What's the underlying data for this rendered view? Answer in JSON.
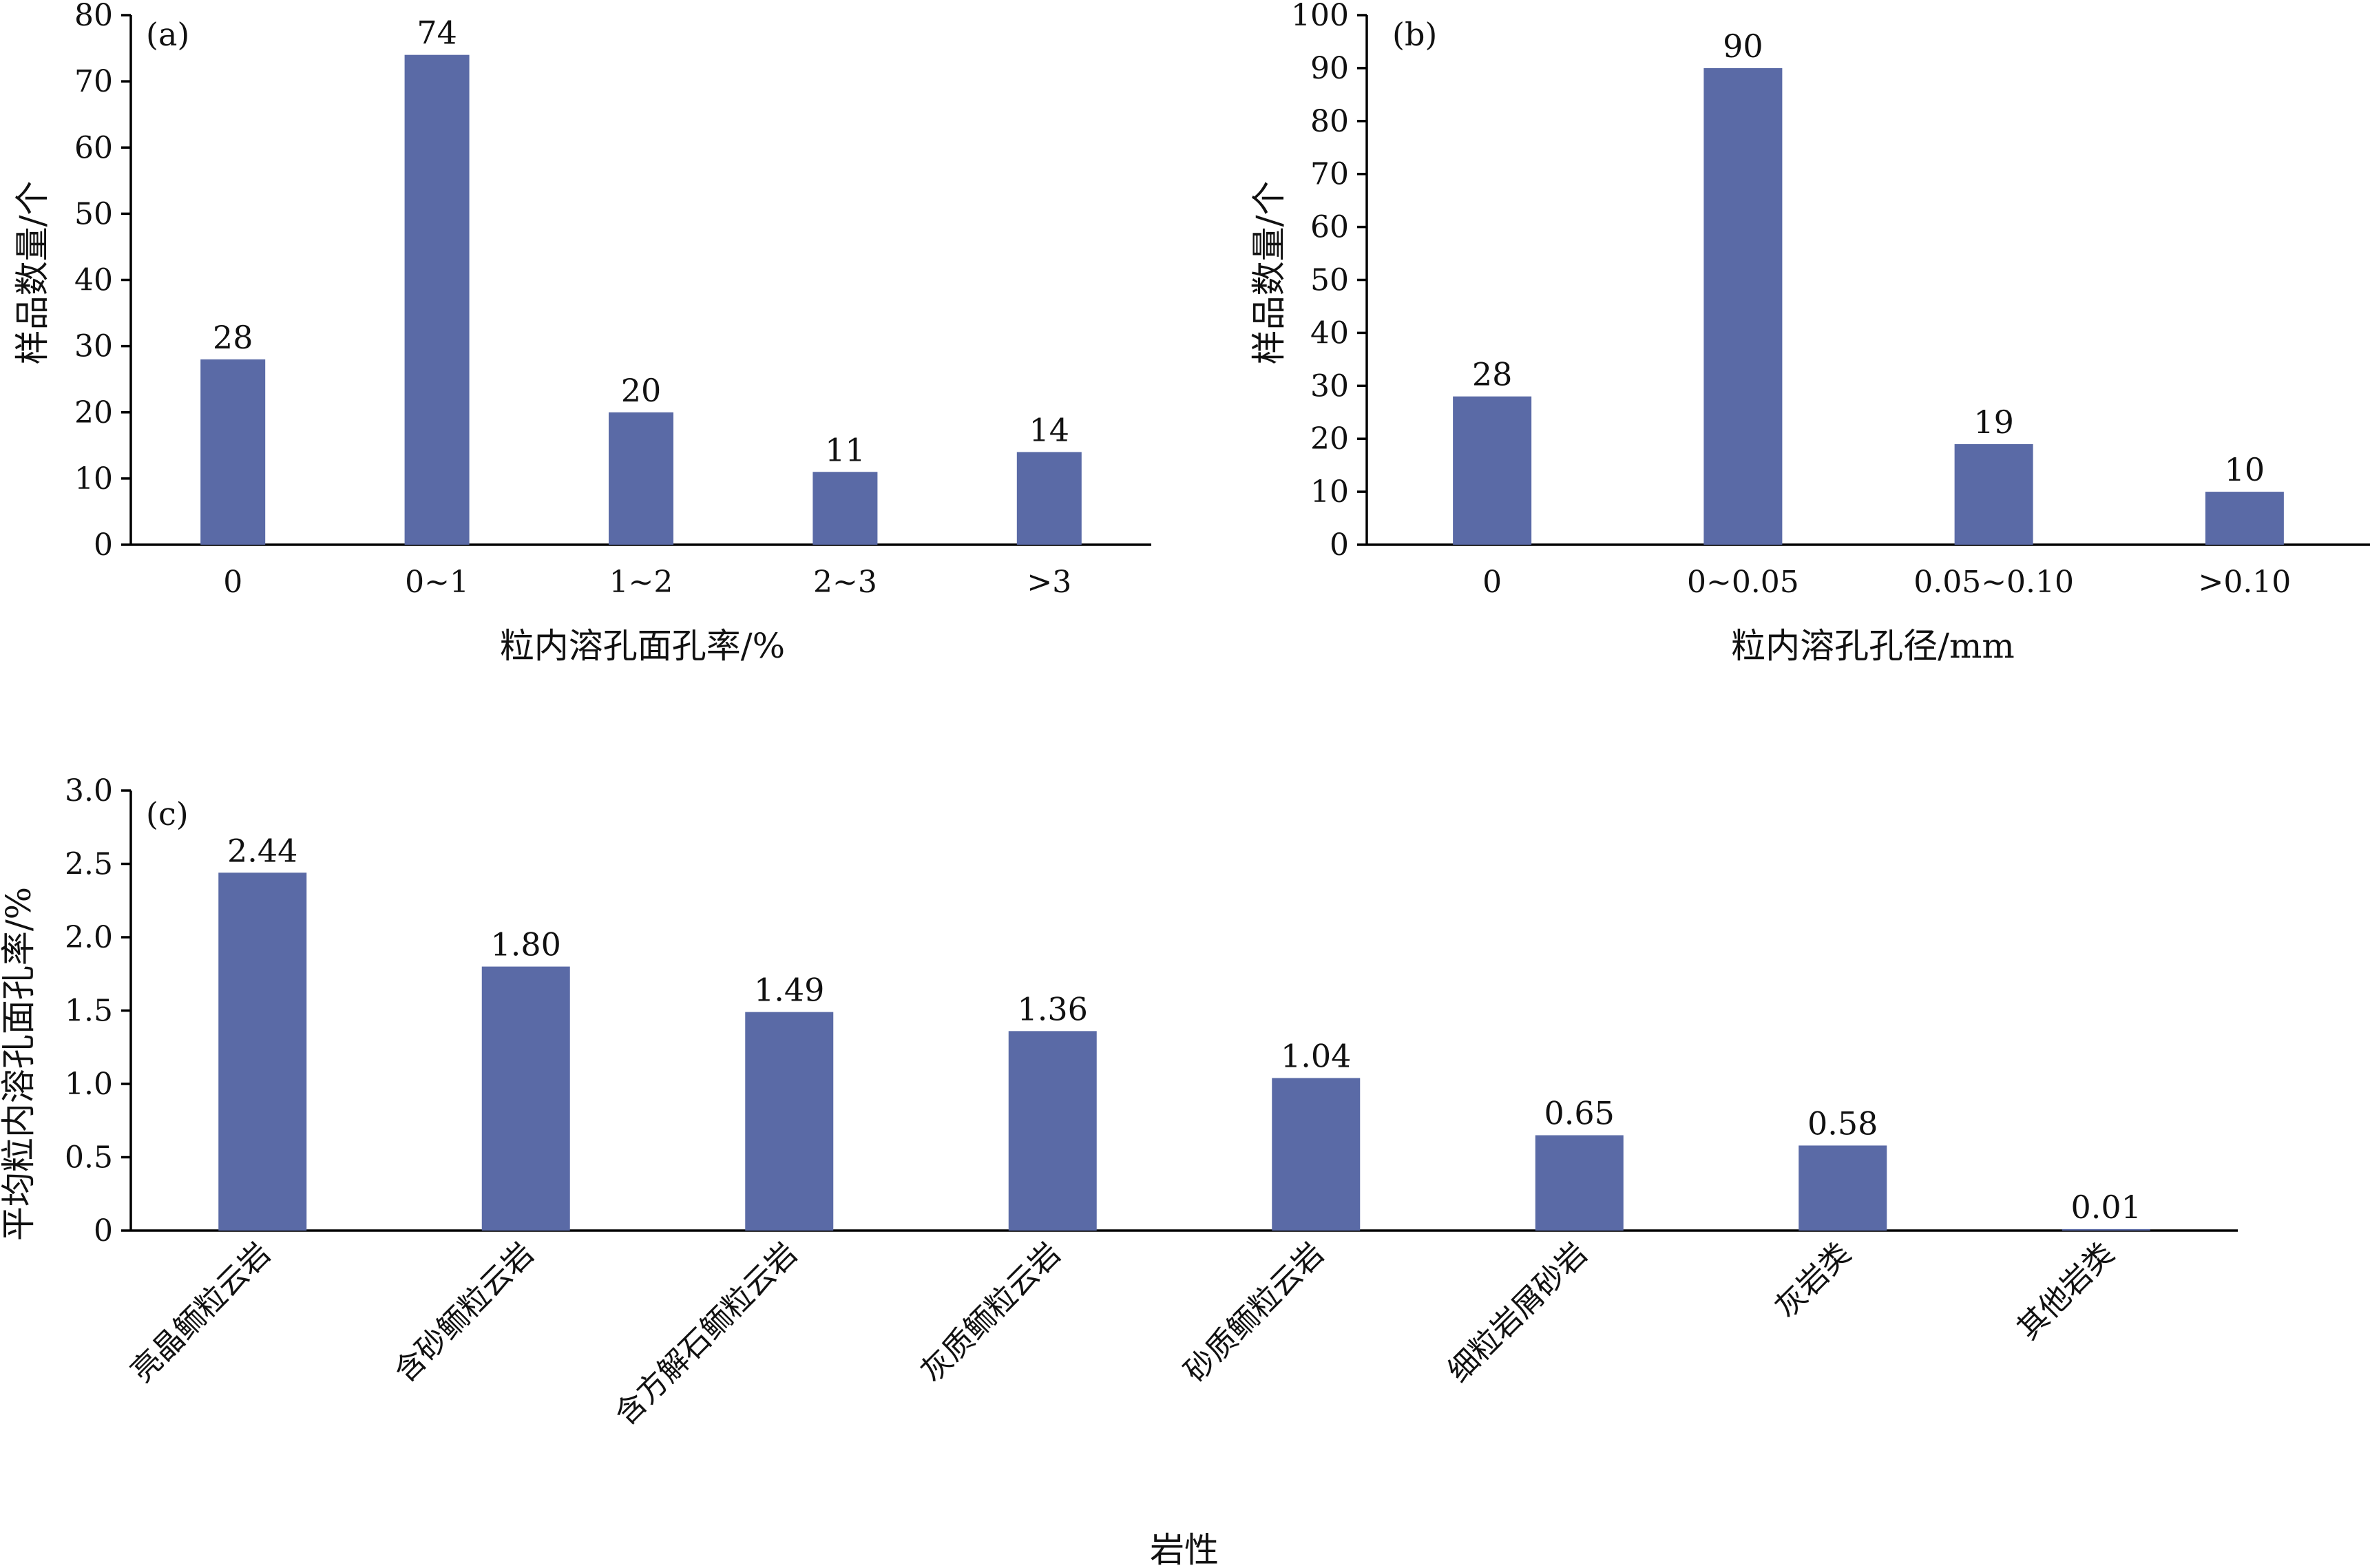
{
  "colors": {
    "bar": "#5a6aa6",
    "axis": "#000000",
    "text": "#111111"
  },
  "chart_data": [
    {
      "type": "bar",
      "panel": "(a)",
      "categories": [
        "0",
        "0~1",
        "1~2",
        "2~3",
        ">3"
      ],
      "values": [
        28,
        74,
        20,
        11,
        14
      ],
      "value_labels": [
        "28",
        "74",
        "20",
        "11",
        "14"
      ],
      "xlabel": "粒内溶孔面孔率/%",
      "ylabel": "样品数量/个",
      "ylim": [
        0,
        80
      ],
      "yticks": [
        "0",
        "10",
        "20",
        "30",
        "40",
        "50",
        "60",
        "70",
        "80"
      ],
      "grid": false,
      "legend": "none"
    },
    {
      "type": "bar",
      "panel": "(b)",
      "categories": [
        "0",
        "0~0.05",
        "0.05~0.10",
        ">0.10"
      ],
      "values": [
        28,
        90,
        19,
        10
      ],
      "value_labels": [
        "28",
        "90",
        "19",
        "10"
      ],
      "xlabel": "粒内溶孔孔径/mm",
      "ylabel": "样品数量/个",
      "ylim": [
        0,
        100
      ],
      "yticks": [
        "0",
        "10",
        "20",
        "30",
        "40",
        "50",
        "60",
        "70",
        "80",
        "90",
        "100"
      ],
      "grid": false,
      "legend": "none"
    },
    {
      "type": "bar",
      "panel": "(c)",
      "categories": [
        "亮晶鲕粒云岩",
        "含砂鲕粒云岩",
        "含方解石鲕粒云岩",
        "灰质鲕粒云岩",
        "砂质鲕粒云岩",
        "细粒岩屑砂岩",
        "灰岩类",
        "其他岩类"
      ],
      "values": [
        2.44,
        1.8,
        1.49,
        1.36,
        1.04,
        0.65,
        0.58,
        0.01
      ],
      "value_labels": [
        "2.44",
        "1.80",
        "1.49",
        "1.36",
        "1.04",
        "0.65",
        "0.58",
        "0.01"
      ],
      "xlabel": "岩性",
      "ylabel": "平均粒内溶孔面孔率/%",
      "ylim": [
        0,
        3.0
      ],
      "yticks": [
        "0",
        "0.5",
        "1.0",
        "1.5",
        "2.0",
        "2.5",
        "3.0"
      ],
      "grid": false,
      "legend": "none"
    }
  ]
}
